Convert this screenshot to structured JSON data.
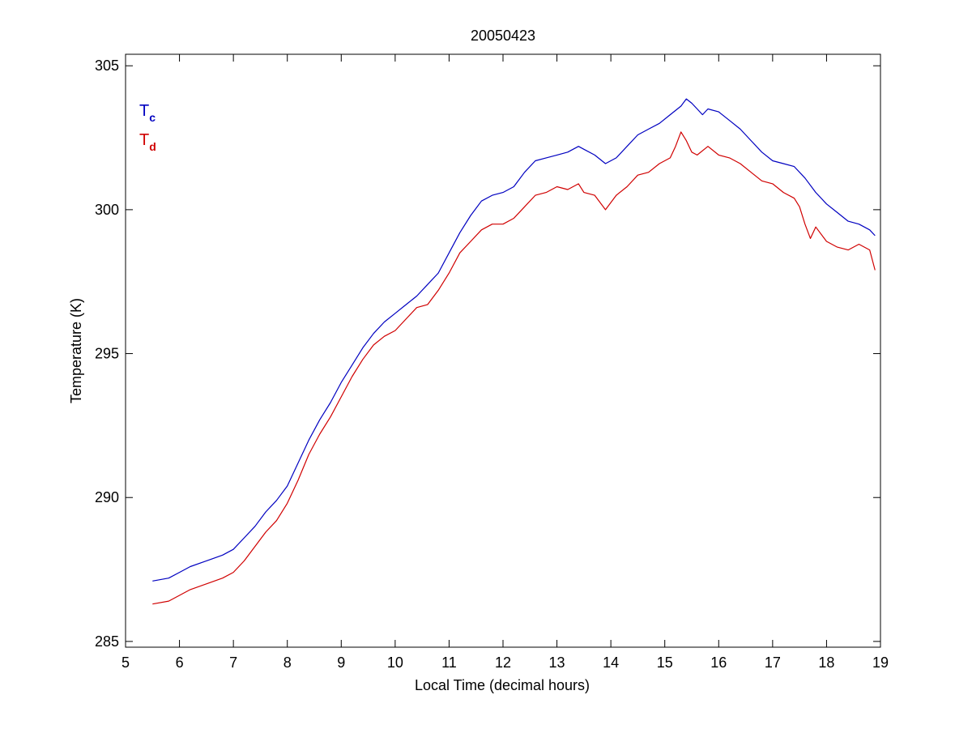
{
  "chart_data": {
    "type": "line",
    "title": "20050423",
    "xlabel": "Local Time (decimal hours)",
    "ylabel": "Temperature (K)",
    "xlim": [
      5,
      19
    ],
    "ylim": [
      284.8,
      305.4
    ],
    "xticks": [
      5,
      6,
      7,
      8,
      9,
      10,
      11,
      12,
      13,
      14,
      15,
      16,
      17,
      18,
      19
    ],
    "yticks": [
      285,
      290,
      295,
      300,
      305
    ],
    "grid": false,
    "legend_position": "top-left",
    "series": [
      {
        "name": "Tc",
        "legend_main": "T",
        "legend_sub": "c",
        "color": "#0000c0",
        "x": [
          5.5,
          5.8,
          6.0,
          6.2,
          6.5,
          6.8,
          7.0,
          7.2,
          7.4,
          7.6,
          7.8,
          8.0,
          8.2,
          8.4,
          8.6,
          8.8,
          9.0,
          9.2,
          9.4,
          9.6,
          9.8,
          10.0,
          10.2,
          10.4,
          10.6,
          10.8,
          11.0,
          11.2,
          11.4,
          11.6,
          11.8,
          12.0,
          12.2,
          12.4,
          12.6,
          12.8,
          13.0,
          13.2,
          13.4,
          13.5,
          13.7,
          13.9,
          14.1,
          14.3,
          14.5,
          14.7,
          14.9,
          15.1,
          15.3,
          15.4,
          15.5,
          15.6,
          15.7,
          15.8,
          16.0,
          16.2,
          16.4,
          16.6,
          16.8,
          17.0,
          17.2,
          17.4,
          17.6,
          17.8,
          18.0,
          18.2,
          18.4,
          18.6,
          18.8,
          18.9
        ],
        "y": [
          287.1,
          287.2,
          287.4,
          287.6,
          287.8,
          288.0,
          288.2,
          288.6,
          289.0,
          289.5,
          289.9,
          290.4,
          291.2,
          292.0,
          292.7,
          293.3,
          294.0,
          294.6,
          295.2,
          295.7,
          296.1,
          296.4,
          296.7,
          297.0,
          297.4,
          297.8,
          298.5,
          299.2,
          299.8,
          300.3,
          300.5,
          300.6,
          300.8,
          301.3,
          301.7,
          301.8,
          301.9,
          302.0,
          302.2,
          302.1,
          301.9,
          301.6,
          301.8,
          302.2,
          302.6,
          302.8,
          303.0,
          303.3,
          303.6,
          303.85,
          303.7,
          303.5,
          303.3,
          303.5,
          303.4,
          303.1,
          302.8,
          302.4,
          302.0,
          301.7,
          301.6,
          301.5,
          301.1,
          300.6,
          300.2,
          299.9,
          299.6,
          299.5,
          299.3,
          299.1
        ]
      },
      {
        "name": "Td",
        "legend_main": "T",
        "legend_sub": "d",
        "color": "#d00000",
        "x": [
          5.5,
          5.8,
          6.0,
          6.2,
          6.5,
          6.8,
          7.0,
          7.2,
          7.4,
          7.6,
          7.8,
          8.0,
          8.2,
          8.4,
          8.6,
          8.8,
          9.0,
          9.2,
          9.4,
          9.6,
          9.8,
          10.0,
          10.2,
          10.4,
          10.6,
          10.8,
          11.0,
          11.2,
          11.4,
          11.6,
          11.8,
          12.0,
          12.2,
          12.4,
          12.6,
          12.8,
          13.0,
          13.2,
          13.4,
          13.5,
          13.7,
          13.9,
          14.1,
          14.3,
          14.5,
          14.7,
          14.9,
          15.1,
          15.2,
          15.3,
          15.4,
          15.5,
          15.6,
          15.8,
          16.0,
          16.2,
          16.4,
          16.6,
          16.8,
          17.0,
          17.2,
          17.4,
          17.5,
          17.6,
          17.7,
          17.8,
          18.0,
          18.2,
          18.4,
          18.6,
          18.8,
          18.9
        ],
        "y": [
          286.3,
          286.4,
          286.6,
          286.8,
          287.0,
          287.2,
          287.4,
          287.8,
          288.3,
          288.8,
          289.2,
          289.8,
          290.6,
          291.5,
          292.2,
          292.8,
          293.5,
          294.2,
          294.8,
          295.3,
          295.6,
          295.8,
          296.2,
          296.6,
          296.7,
          297.2,
          297.8,
          298.5,
          298.9,
          299.3,
          299.5,
          299.5,
          299.7,
          300.1,
          300.5,
          300.6,
          300.8,
          300.7,
          300.9,
          300.6,
          300.5,
          300.0,
          300.5,
          300.8,
          301.2,
          301.3,
          301.6,
          301.8,
          302.2,
          302.7,
          302.4,
          302.0,
          301.9,
          302.2,
          301.9,
          301.8,
          301.6,
          301.3,
          301.0,
          300.9,
          300.6,
          300.4,
          300.1,
          299.5,
          299.0,
          299.4,
          298.9,
          298.7,
          298.6,
          298.8,
          298.6,
          297.9
        ]
      }
    ]
  }
}
